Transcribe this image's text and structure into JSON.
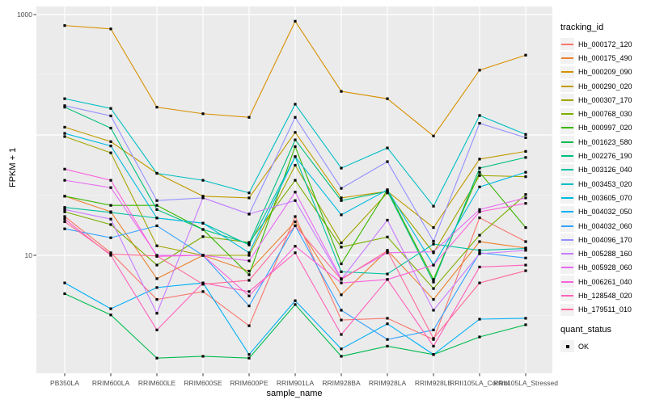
{
  "figure": {
    "background": "#ffffff",
    "panel_bg": "#ebebeb",
    "grid_color": "#ffffff",
    "tick_text_color": "#4d4d4d",
    "point_color": "#000000"
  },
  "legend": {
    "tracking_title": "tracking_id",
    "quant_title": "quant_status",
    "quant_items": [
      {
        "label": "OK",
        "marker": "black-square"
      }
    ]
  },
  "chart_data": {
    "type": "line",
    "title": "",
    "xlabel": "sample_name",
    "ylabel": "FPKM + 1",
    "y_scale": "log10",
    "ylim": [
      1,
      1200
    ],
    "y_tick_labels": [
      10,
      1000
    ],
    "y_major_gridlines": [
      10,
      100,
      1000
    ],
    "y_minor_gridlines": [
      3.162,
      31.62,
      316.2
    ],
    "grid": true,
    "legend_position": "right",
    "marker": "small-black-point",
    "categories": [
      "PB350LA",
      "RRIM600LA",
      "RRIM600LE",
      "RRIM600SE",
      "RRIM600PE",
      "RRIM901LA",
      "RRIM928BA",
      "RRIM928LA",
      "RRIM928LE",
      "RRII105LA_Control",
      "RRII105LA_Stressed"
    ],
    "series": [
      {
        "name": "Hb_000172_120",
        "color": "#F8766D",
        "values": [
          21,
          10.5,
          4.3,
          5.0,
          2.6,
          21,
          2.9,
          3.0,
          2.0,
          20.5,
          13
        ]
      },
      {
        "name": "Hb_000175_490",
        "color": "#EA8331",
        "values": [
          31,
          23,
          6.4,
          10,
          7.4,
          19,
          4.7,
          11,
          4.3,
          13,
          11.5
        ]
      },
      {
        "name": "Hb_000209_090",
        "color": "#D89000",
        "values": [
          810,
          760,
          170,
          150,
          140,
          880,
          230,
          200,
          98,
          345,
          460
        ]
      },
      {
        "name": "Hb_000290_020",
        "color": "#C09B00",
        "values": [
          116,
          88,
          48,
          31,
          30,
          105,
          30,
          34,
          17,
          63,
          73
        ]
      },
      {
        "name": "Hb_000307_170",
        "color": "#A3A500",
        "values": [
          97,
          71,
          12,
          10,
          10,
          56,
          12.7,
          33,
          10.5,
          46,
          45
        ]
      },
      {
        "name": "Hb_000768_030",
        "color": "#7CAE00",
        "values": [
          23,
          18,
          8.3,
          14.3,
          12.8,
          42,
          11.7,
          14.2,
          5.3,
          14.7,
          32
        ]
      },
      {
        "name": "Hb_000997_020",
        "color": "#39B600",
        "values": [
          31,
          26,
          26,
          16.4,
          6.9,
          80,
          8.5,
          35,
          6.3,
          49,
          17
        ]
      },
      {
        "name": "Hb_001623_580",
        "color": "#00BB4E",
        "values": [
          4.8,
          3.2,
          1.4,
          1.45,
          1.4,
          3.9,
          1.45,
          1.76,
          1.5,
          2.1,
          2.65
        ]
      },
      {
        "name": "Hb_002276_190",
        "color": "#00BF7D",
        "values": [
          170,
          114,
          24,
          16.4,
          12.5,
          91,
          28.5,
          34,
          6.0,
          53,
          65
        ]
      },
      {
        "name": "Hb_003126_040",
        "color": "#00C1A3",
        "values": [
          25,
          22.7,
          20.4,
          18.5,
          12.2,
          66,
          7.3,
          7.0,
          12.4,
          11,
          11.4
        ]
      },
      {
        "name": "Hb_003453_020",
        "color": "#00BFC4",
        "values": [
          200,
          166,
          48,
          42,
          33,
          180,
          53,
          78,
          25.6,
          145,
          101
        ]
      },
      {
        "name": "Hb_003605_070",
        "color": "#00BAE0",
        "values": [
          103,
          81,
          20.4,
          18.5,
          10.5,
          66,
          21.7,
          35,
          8.3,
          37,
          49
        ]
      },
      {
        "name": "Hb_004032_050",
        "color": "#00B0F6",
        "values": [
          5.9,
          3.6,
          5.4,
          5.9,
          1.5,
          4.2,
          1.67,
          2.7,
          1.5,
          2.95,
          3.0
        ]
      },
      {
        "name": "Hb_004032_060",
        "color": "#35A2FF",
        "values": [
          16.6,
          14,
          17.6,
          10,
          3.8,
          17.6,
          3.5,
          2.0,
          2.4,
          10.5,
          9.5
        ]
      },
      {
        "name": "Hb_004096_170",
        "color": "#9590FF",
        "values": [
          175,
          144,
          28.5,
          30,
          22,
          140,
          36,
          60,
          13.1,
          125,
          95
        ]
      },
      {
        "name": "Hb_005288_160",
        "color": "#C77CFF",
        "values": [
          24,
          20,
          3.3,
          30,
          22,
          28.5,
          6.3,
          19.6,
          3.5,
          10.3,
          11
        ]
      },
      {
        "name": "Hb_005928_060",
        "color": "#E76BF3",
        "values": [
          42,
          36.5,
          10,
          10,
          9.0,
          33.5,
          6.4,
          10.5,
          10.7,
          24,
          30
        ]
      },
      {
        "name": "Hb_006261_040",
        "color": "#FA62DB",
        "values": [
          52,
          42,
          9.8,
          10,
          4.6,
          11.9,
          5.9,
          6.3,
          8.3,
          23,
          27
        ]
      },
      {
        "name": "Hb_128548_020",
        "color": "#FF62BC",
        "values": [
          20,
          10,
          2.4,
          5.9,
          5.0,
          10.5,
          2.2,
          6.3,
          1.76,
          8.0,
          8.3
        ]
      },
      {
        "name": "Hb_179511_010",
        "color": "#FF6A98",
        "values": [
          19,
          10.2,
          9.9,
          5.75,
          6.2,
          17.6,
          6.3,
          10.9,
          2.04,
          5.9,
          7.45
        ]
      }
    ]
  }
}
